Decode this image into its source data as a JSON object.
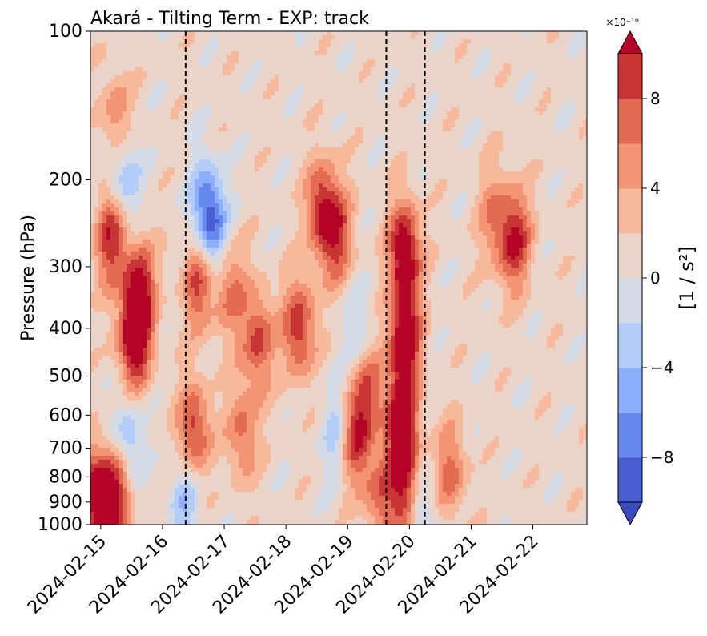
{
  "chart_data": {
    "type": "heatmap",
    "title": "Akará - Tilting Term - EXP: track",
    "ylabel": "Pressure (hPa)",
    "y_scale": "log",
    "y_inverted": true,
    "ylim": [
      1000,
      100
    ],
    "y_ticks": [
      100,
      200,
      300,
      400,
      500,
      600,
      700,
      800,
      900,
      1000
    ],
    "x_ticks": [
      "2024-02-15",
      "2024-02-16",
      "2024-02-17",
      "2024-02-18",
      "2024-02-19",
      "2024-02-20",
      "2024-02-21",
      "2024-02-22"
    ],
    "xlim": [
      "2024-02-14 20:00",
      "2024-02-22 21:00"
    ],
    "vertical_lines": [
      "2024-02-16 09:00",
      "2024-02-19 15:00",
      "2024-02-20 06:00"
    ],
    "colorbar": {
      "label": "[1 / s²]",
      "multiplier": "×10⁻¹⁰",
      "ticks": [
        -8,
        -4,
        0,
        4,
        8
      ],
      "levels": [
        -10,
        -8,
        -6,
        -4,
        -2,
        0,
        2,
        4,
        6,
        8,
        10
      ],
      "colors": [
        "#4a5ed3",
        "#6788ee",
        "#8caefc",
        "#b3cdfb",
        "#d5dbe5",
        "#ead4c8",
        "#f7b89c",
        "#f39475",
        "#e36a53",
        "#c73635"
      ],
      "under_color": "#3b4cc0",
      "over_color": "#b40426",
      "extend": "both"
    },
    "features": [
      {
        "t": "2024-02-15 04:00",
        "p": 260,
        "v": 9
      },
      {
        "t": "2024-02-15 06:00",
        "p": 150,
        "v": 5
      },
      {
        "t": "2024-02-15 09:00",
        "p": 200,
        "v": -6
      },
      {
        "t": "2024-02-15 13:00",
        "p": 420,
        "v": 12
      },
      {
        "t": "2024-02-15 15:00",
        "p": 330,
        "v": 9
      },
      {
        "t": "2024-02-14 22:00",
        "p": 880,
        "v": 11
      },
      {
        "t": "2024-02-15 06:00",
        "p": 860,
        "v": 10
      },
      {
        "t": "2024-02-15 10:00",
        "p": 690,
        "v": -6
      },
      {
        "t": "2024-02-16 09:00",
        "p": 880,
        "v": -5
      },
      {
        "t": "2024-02-16 12:00",
        "p": 650,
        "v": 9
      },
      {
        "t": "2024-02-16 14:00",
        "p": 320,
        "v": 8
      },
      {
        "t": "2024-02-16 17:00",
        "p": 230,
        "v": -8
      },
      {
        "t": "2024-02-16 20:00",
        "p": 260,
        "v": -5
      },
      {
        "t": "2024-02-17 02:00",
        "p": 330,
        "v": 6
      },
      {
        "t": "2024-02-17 07:00",
        "p": 650,
        "v": 6
      },
      {
        "t": "2024-02-17 13:00",
        "p": 420,
        "v": 8
      },
      {
        "t": "2024-02-18 05:00",
        "p": 400,
        "v": 9
      },
      {
        "t": "2024-02-18 14:00",
        "p": 230,
        "v": 9
      },
      {
        "t": "2024-02-18 20:00",
        "p": 260,
        "v": 7
      },
      {
        "t": "2024-02-18 21:00",
        "p": 650,
        "v": -6
      },
      {
        "t": "2024-02-19 02:00",
        "p": 660,
        "v": 10
      },
      {
        "t": "2024-02-19 05:00",
        "p": 420,
        "v": -4
      },
      {
        "t": "2024-02-19 08:00",
        "p": 520,
        "v": 7
      },
      {
        "t": "2024-02-19 12:00",
        "p": 860,
        "v": 6
      },
      {
        "t": "2024-02-19 22:00",
        "p": 280,
        "v": 12
      },
      {
        "t": "2024-02-19 22:00",
        "p": 420,
        "v": 12
      },
      {
        "t": "2024-02-19 21:00",
        "p": 620,
        "v": 12
      },
      {
        "t": "2024-02-19 23:00",
        "p": 880,
        "v": 11
      },
      {
        "t": "2024-02-20 03:00",
        "p": 950,
        "v": -7
      },
      {
        "t": "2024-02-20 16:00",
        "p": 780,
        "v": 6
      },
      {
        "t": "2024-02-21 09:00",
        "p": 240,
        "v": 5
      },
      {
        "t": "2024-02-21 17:00",
        "p": 265,
        "v": 9
      }
    ]
  }
}
